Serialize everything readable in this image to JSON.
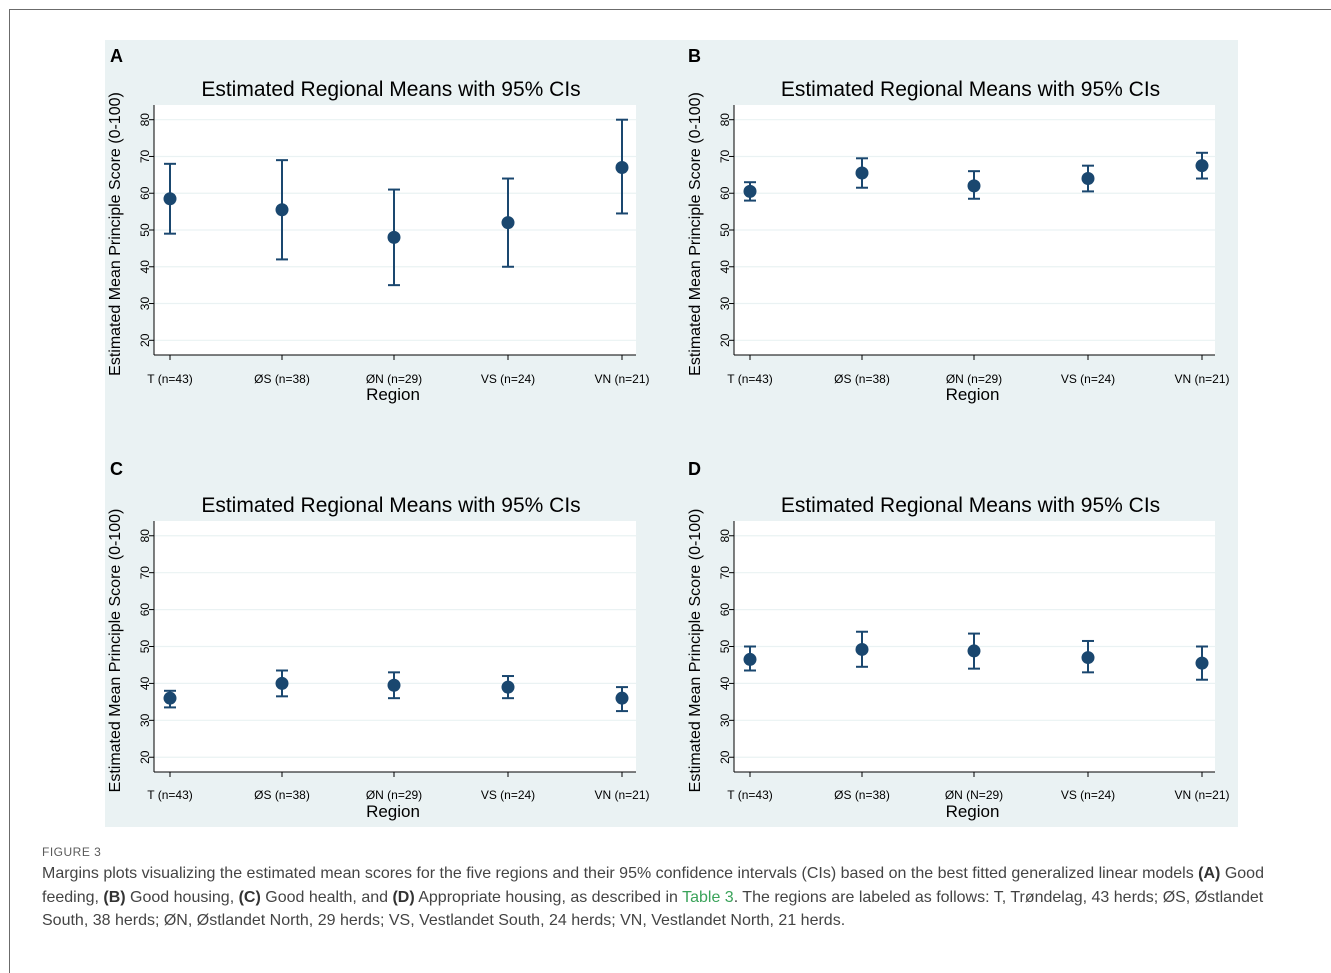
{
  "caption": {
    "label": "FIGURE 3",
    "text_1": "Margins plots visualizing the estimated mean scores for the five regions and their 95% confidence intervals (CIs) based on the best fitted generalized linear models ",
    "a": "(A)",
    "a_text": " Good feeding, ",
    "b": "(B)",
    "b_text": " Good housing, ",
    "c": "(C)",
    "c_text": " Good health, and ",
    "d": "(D)",
    "d_text": " Appropriate housing, as described in ",
    "table_link": "Table 3",
    "text_2": ". The regions are labeled as follows: T, Trøndelag, 43 herds; ØS, Østlandet South, 38 herds; ØN, Østlandet North, 29 herds; VS, Vestlandet South, 24 herds; VN, Vestlandet North, 21 herds."
  },
  "colors": {
    "panel_bg": "#eaf2f3",
    "plot_bg": "#ffffff",
    "marker": "#1a476f",
    "grid": "#eaf2f3",
    "axis": "#000000"
  },
  "chart_data": [
    {
      "panel": "A",
      "type": "scatter",
      "title": "Estimated Regional Means with 95% CIs",
      "xlabel": "Region",
      "ylabel": "Estimated Mean Principle Score (0-100)",
      "categories": [
        "T (n=43)",
        "ØS (n=38)",
        "ØN (n=29)",
        "VS (n=24)",
        "VN (n=21)"
      ],
      "values": [
        58.5,
        55.5,
        48,
        52,
        67
      ],
      "ci_lower": [
        49,
        42,
        35,
        40,
        54.5
      ],
      "ci_upper": [
        68,
        69,
        61,
        64,
        80
      ],
      "yticks": [
        20,
        30,
        40,
        50,
        60,
        70,
        80
      ],
      "ylim": [
        16,
        84
      ],
      "grid": true
    },
    {
      "panel": "B",
      "type": "scatter",
      "title": "Estimated Regional Means with 95% CIs",
      "xlabel": "Region",
      "ylabel": "Estimated Mean Principle Score (0-100)",
      "categories": [
        "T (n=43)",
        "ØS (n=38)",
        "ØN (n=29)",
        "VS (n=24)",
        "VN (n=21)"
      ],
      "values": [
        60.5,
        65.5,
        62,
        64,
        67.5
      ],
      "ci_lower": [
        58,
        61.5,
        58.5,
        60.5,
        64
      ],
      "ci_upper": [
        63,
        69.5,
        66,
        67.5,
        71
      ],
      "yticks": [
        20,
        30,
        40,
        50,
        60,
        70,
        80
      ],
      "ylim": [
        16,
        84
      ],
      "grid": true
    },
    {
      "panel": "C",
      "type": "scatter",
      "title": "Estimated Regional Means with 95% CIs",
      "xlabel": "Region",
      "ylabel": "Estimated Mean Principle Score (0-100)",
      "categories": [
        "T (n=43)",
        "ØS (n=38)",
        "ØN (n=29)",
        "VS (n=24)",
        "VN (n=21)"
      ],
      "values": [
        36,
        40,
        39.5,
        39,
        36
      ],
      "ci_lower": [
        33.5,
        36.5,
        36,
        36,
        32.5
      ],
      "ci_upper": [
        38,
        43.5,
        43,
        42,
        39
      ],
      "yticks": [
        20,
        30,
        40,
        50,
        60,
        70,
        80
      ],
      "ylim": [
        16,
        84
      ],
      "grid": true
    },
    {
      "panel": "D",
      "type": "scatter",
      "title": "Estimated Regional Means with 95% CIs",
      "xlabel": "Region",
      "ylabel": "Estimated Mean Principle Score (0-100)",
      "categories": [
        "T (n=43)",
        "ØS (n=38)",
        "ØN (N=29)",
        "VS (n=24)",
        "VN (n=21)"
      ],
      "values": [
        46.5,
        49.2,
        48.8,
        47,
        45.5
      ],
      "ci_lower": [
        43.5,
        44.5,
        44,
        43,
        41
      ],
      "ci_upper": [
        50,
        54,
        53.5,
        51.5,
        50
      ],
      "yticks": [
        20,
        30,
        40,
        50,
        60,
        70,
        80
      ],
      "ylim": [
        16,
        84
      ],
      "grid": true
    }
  ]
}
